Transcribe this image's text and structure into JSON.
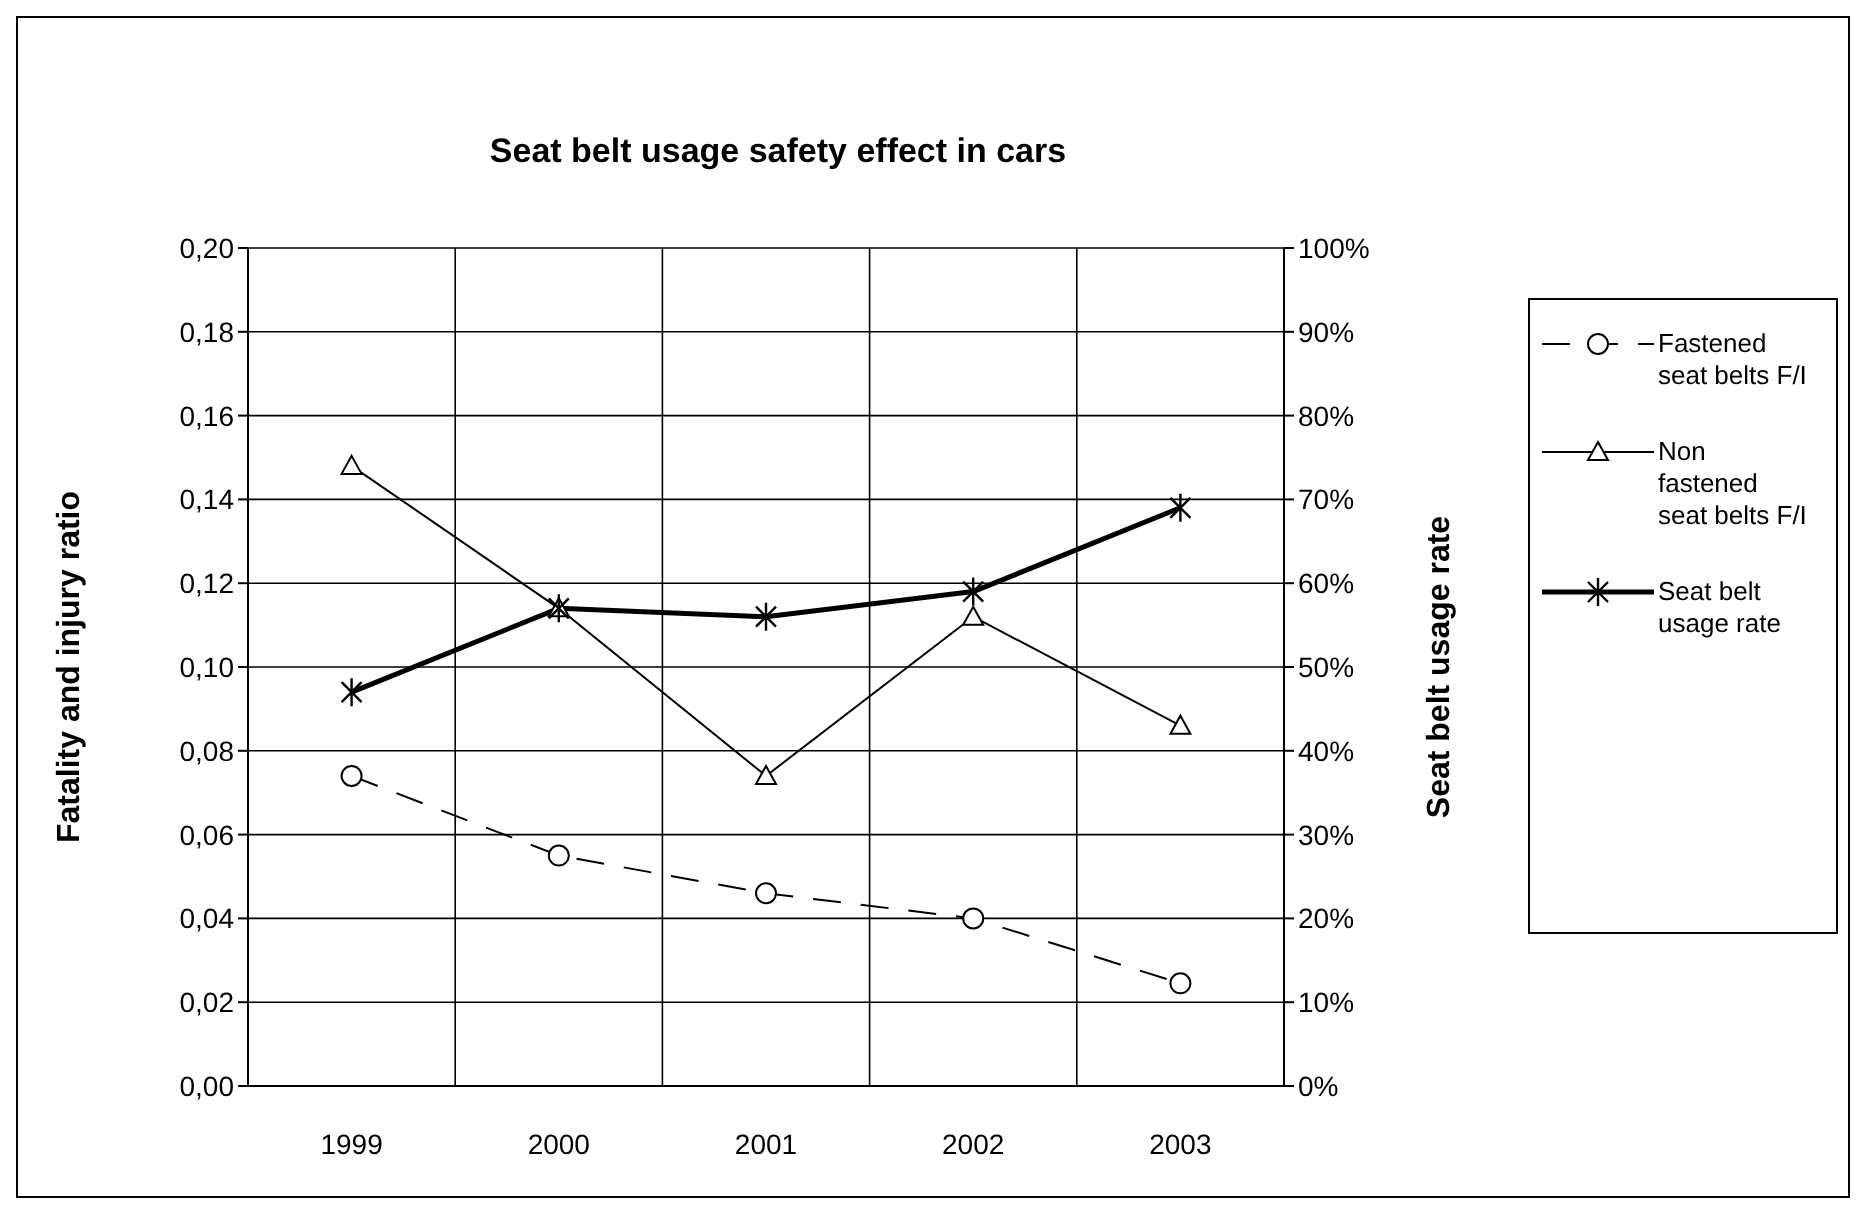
{
  "chart_data": {
    "type": "line",
    "title": "Seat belt usage safety effect in cars",
    "ylabel": "Fatality and injury ratio",
    "y2label": "Seat belt usage rate",
    "categories": [
      "1999",
      "2000",
      "2001",
      "2002",
      "2003"
    ],
    "series": [
      {
        "name": "Fastened seat belts F/I",
        "color": "#000000",
        "values": [
          0.074,
          0.055,
          0.046,
          0.04,
          0.0245
        ],
        "marker": "circle",
        "line_style": "dashed"
      },
      {
        "name": "Non fastened seat belts F/I",
        "color": "#000000",
        "values": [
          0.148,
          0.114,
          0.074,
          0.112,
          0.086
        ],
        "marker": "triangle",
        "line_style": "solid"
      },
      {
        "name": "Seat belt usage rate",
        "color": "#000000",
        "values": [
          47,
          57,
          56,
          59,
          69
        ],
        "marker": "cross",
        "line_style": "solid",
        "axis": "y2"
      }
    ],
    "ylim": [
      0,
      0.2
    ],
    "yticks": [
      {
        "value": 0,
        "label": "0,00"
      },
      {
        "value": 0.02,
        "label": "0,02"
      },
      {
        "value": 0.04,
        "label": "0,04"
      },
      {
        "value": 0.06,
        "label": "0,06"
      },
      {
        "value": 0.08,
        "label": "0,08"
      },
      {
        "value": 0.1,
        "label": "0,10"
      },
      {
        "value": 0.12,
        "label": "0,12"
      },
      {
        "value": 0.14,
        "label": "0,14"
      },
      {
        "value": 0.16,
        "label": "0,16"
      },
      {
        "value": 0.18,
        "label": "0,18"
      },
      {
        "value": 0.2,
        "label": "0,20"
      }
    ],
    "y2lim": [
      0,
      100
    ],
    "y2ticks": [
      {
        "value": 0,
        "label": "0%"
      },
      {
        "value": 10,
        "label": "10%"
      },
      {
        "value": 20,
        "label": "20%"
      },
      {
        "value": 30,
        "label": "30%"
      },
      {
        "value": 40,
        "label": "40%"
      },
      {
        "value": 50,
        "label": "50%"
      },
      {
        "value": 60,
        "label": "60%"
      },
      {
        "value": 70,
        "label": "70%"
      },
      {
        "value": 80,
        "label": "80%"
      },
      {
        "value": 90,
        "label": "90%"
      },
      {
        "value": 100,
        "label": "100%"
      }
    ],
    "grid": true,
    "legend": "right"
  }
}
